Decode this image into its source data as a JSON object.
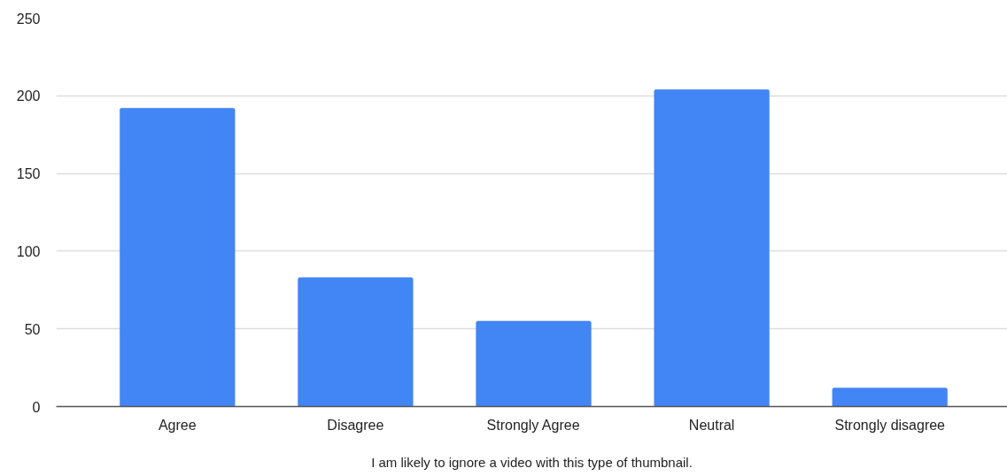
{
  "chart_data": {
    "type": "bar",
    "xlabel": "I am likely to ignore a video with this type of thumbnail.",
    "categories": [
      "Agree",
      "Disagree",
      "Strongly Agree",
      "Neutral",
      "Strongly disagree"
    ],
    "values": [
      192,
      83,
      55,
      204,
      12
    ],
    "color": "#4285f4",
    "ylim": [
      0,
      250
    ],
    "yticks": [
      0,
      50,
      100,
      150,
      200,
      250
    ],
    "grid": "y"
  }
}
